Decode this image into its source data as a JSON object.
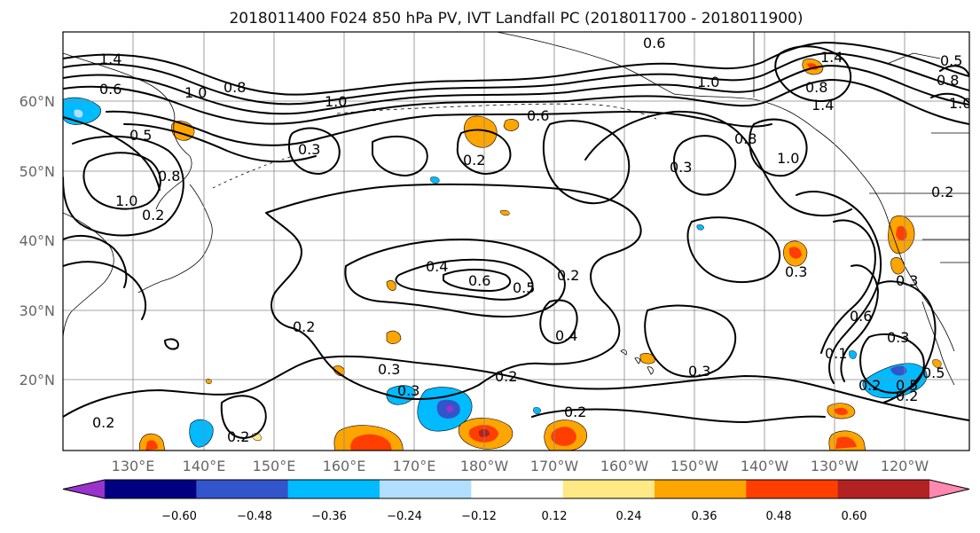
{
  "title": "2018011400 F024 850 hPa PV, IVT Landfall PC (2018011700 - 2018011900)",
  "map": {
    "lat_labels": [
      "60°N",
      "50°N",
      "40°N",
      "30°N",
      "20°N"
    ],
    "lon_labels": [
      "130°E",
      "140°E",
      "150°E",
      "160°E",
      "170°E",
      "180°W",
      "170°W",
      "160°W",
      "150°W",
      "140°W",
      "130°W",
      "120°W"
    ]
  },
  "contour_labels": [
    "1.4",
    "0.6",
    "1.0",
    "0.8",
    "0.5",
    "0.8",
    "1.0",
    "1.0",
    "0.3",
    "0.2",
    "0.6",
    "0.2",
    "0.4",
    "0.6",
    "0.5",
    "0.2",
    "0.2",
    "0.4",
    "0.3",
    "0.2",
    "0.3",
    "0.2",
    "0.3",
    "0.2",
    "0.2",
    "0.6",
    "0.3",
    "1.0",
    "0.8",
    "1.0",
    "0.3",
    "0.8",
    "0.3",
    "0.6",
    "0.3",
    "0.5",
    "0.2",
    "0.1",
    "0.2",
    "0.5",
    "0.2",
    "0.8",
    "1.4",
    "1.4",
    "0.5",
    "1.0"
  ],
  "colorbar": {
    "colors": [
      "#9933cc",
      "#000080",
      "#3355cc",
      "#00bbff",
      "#b2dfff",
      "#ffffff",
      "#ffe985",
      "#ffa500",
      "#ff3e00",
      "#b22222",
      "#ff88b0"
    ],
    "ticks": [
      "−0.60",
      "−0.48",
      "−0.36",
      "−0.24",
      "−0.12",
      "0.12",
      "0.24",
      "0.36",
      "0.48",
      "0.60"
    ]
  }
}
